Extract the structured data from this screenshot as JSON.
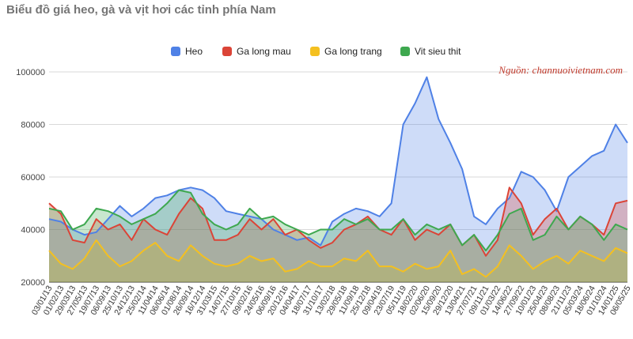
{
  "chart_data": {
    "type": "area",
    "title": "Biểu đồ giá heo, gà và vịt hơi các tỉnh phía Nam",
    "source_note": "Nguồn: channuoivietnam.com",
    "source_color": "#c0392b",
    "legend_position": "top",
    "grid": true,
    "ylim": [
      20000,
      100000
    ],
    "yticks": [
      "20000",
      "40000",
      "60000",
      "80000",
      "100000"
    ],
    "x_tick_labels": [
      "03/01/13",
      "01/02/13",
      "29/03/13",
      "27/05/13",
      "19/07/13",
      "06/09/13",
      "25/10/13",
      "24/12/13",
      "25/02/14",
      "11/04/14",
      "06/06/14",
      "01/08/14",
      "26/09/14",
      "16/12/14",
      "31/03/15",
      "14/07/15",
      "27/10/15",
      "09/02/16",
      "24/05/16",
      "06/09/16",
      "20/12/16",
      "04/04/17",
      "18/07/17",
      "31/10/17",
      "13/02/18",
      "29/05/18",
      "11/09/18",
      "25/12/18",
      "09/04/19",
      "23/07/19",
      "05/11/19",
      "18/02/20",
      "02/06/20",
      "15/09/20",
      "29/12/20",
      "13/04/21",
      "27/07/21",
      "09/11/21",
      "01/03/22",
      "14/06/22",
      "27/09/22",
      "10/01/23",
      "25/04/23",
      "08/08/23",
      "21/11/23",
      "05/03/24",
      "18/06/24",
      "01/10/24",
      "14/01/25",
      "06/05/25"
    ],
    "series": [
      {
        "name": "Heo",
        "color": "#4f81e6",
        "values": [
          44000,
          43000,
          40000,
          38000,
          39000,
          44000,
          49000,
          45000,
          48000,
          52000,
          53000,
          55000,
          56000,
          55000,
          52000,
          47000,
          46000,
          45000,
          44000,
          40000,
          38000,
          36000,
          37000,
          34000,
          43000,
          46000,
          48000,
          47000,
          45000,
          50000,
          80000,
          88000,
          98000,
          82000,
          73000,
          63000,
          45000,
          42000,
          48000,
          52000,
          62000,
          60000,
          55000,
          47000,
          60000,
          64000,
          68000,
          70000,
          80000,
          73000
        ]
      },
      {
        "name": "Ga long mau",
        "color": "#db4437",
        "values": [
          50000,
          46000,
          36000,
          35000,
          44000,
          40000,
          42000,
          36000,
          44000,
          40000,
          38000,
          46000,
          52000,
          48000,
          36000,
          36000,
          38000,
          44000,
          40000,
          44000,
          38000,
          40000,
          36000,
          33000,
          35000,
          40000,
          42000,
          45000,
          40000,
          38000,
          44000,
          36000,
          40000,
          38000,
          42000,
          34000,
          38000,
          30000,
          36000,
          56000,
          50000,
          38000,
          44000,
          48000,
          40000,
          45000,
          42000,
          38000,
          50000,
          51000
        ]
      },
      {
        "name": "Ga long trang",
        "color": "#f4c020",
        "values": [
          32000,
          27000,
          25000,
          29000,
          36000,
          30000,
          26000,
          28000,
          32000,
          35000,
          30000,
          28000,
          34000,
          30000,
          27000,
          26000,
          27000,
          30000,
          28000,
          29000,
          24000,
          25000,
          28000,
          26000,
          26000,
          29000,
          28000,
          32000,
          26000,
          26000,
          24000,
          27000,
          25000,
          26000,
          32000,
          23000,
          25000,
          22000,
          26000,
          34000,
          30000,
          25000,
          28000,
          30000,
          27000,
          32000,
          30000,
          28000,
          33000,
          31000
        ]
      },
      {
        "name": "Vit sieu thit",
        "color": "#3ea84f",
        "values": [
          48000,
          47000,
          40000,
          42000,
          48000,
          47000,
          45000,
          42000,
          44000,
          46000,
          50000,
          55000,
          54000,
          46000,
          42000,
          40000,
          42000,
          48000,
          44000,
          45000,
          42000,
          40000,
          38000,
          40000,
          40000,
          44000,
          42000,
          44000,
          40000,
          40000,
          44000,
          38000,
          42000,
          40000,
          42000,
          34000,
          38000,
          32000,
          38000,
          46000,
          48000,
          36000,
          38000,
          45000,
          40000,
          45000,
          42000,
          36000,
          42000,
          40000
        ]
      }
    ]
  }
}
